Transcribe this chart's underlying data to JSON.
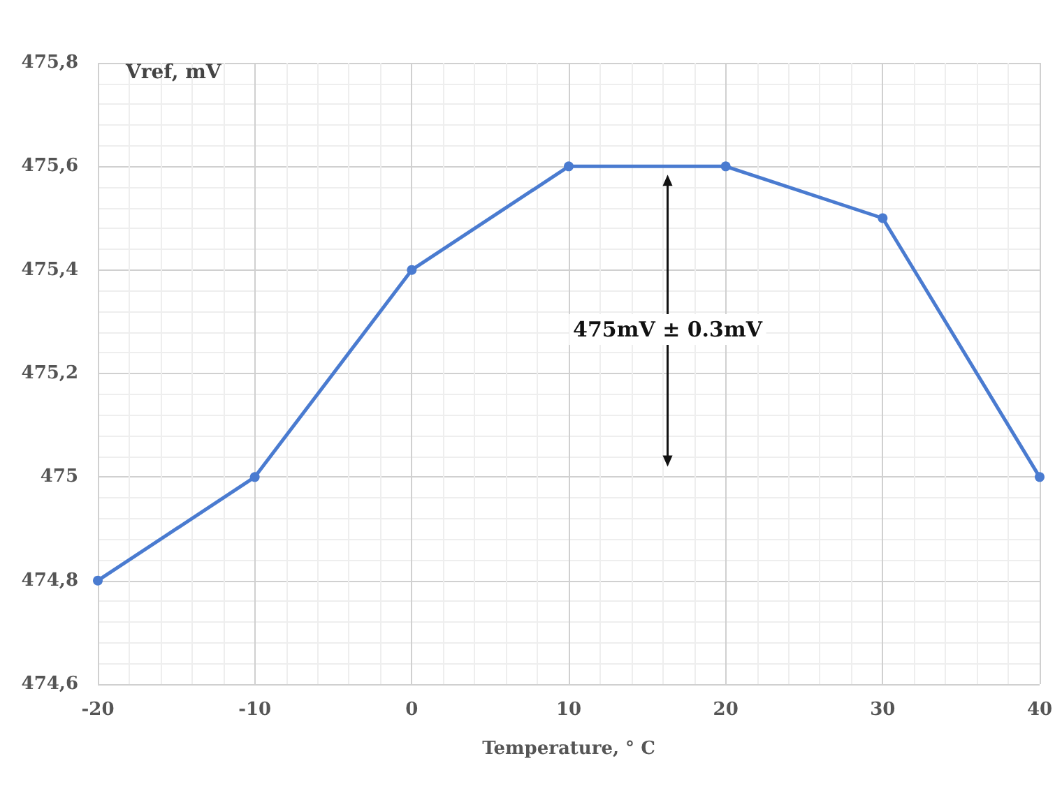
{
  "chart_data": {
    "type": "line",
    "xlabel": "Temperature, ° C",
    "ylabel": "Vref, mV",
    "x": [
      -20,
      -10,
      0,
      10,
      20,
      30,
      40
    ],
    "series": [
      {
        "color": "#4a7bd0",
        "values": [
          474.8,
          475,
          475.4,
          475.6,
          475.6,
          475.5,
          475
        ]
      }
    ],
    "xlim": [
      -20,
      40
    ],
    "xticks": [
      -20,
      -10,
      0,
      10,
      20,
      30,
      40
    ],
    "ylim": [
      474.6,
      475.8
    ],
    "yticks": [
      {
        "value": 474.6,
        "label": "474,6"
      },
      {
        "value": 474.8,
        "label": "474,8"
      },
      475,
      {
        "value": 475.2,
        "label": "475,2"
      },
      {
        "value": 475.4,
        "label": "475,4"
      },
      {
        "value": 475.6,
        "label": "475,6"
      },
      {
        "value": 475.8,
        "label": "475,8"
      }
    ],
    "annotations": [
      "475mV ± 0.3mV"
    ],
    "grid": true,
    "marker": "circle",
    "line_style": "solid"
  }
}
